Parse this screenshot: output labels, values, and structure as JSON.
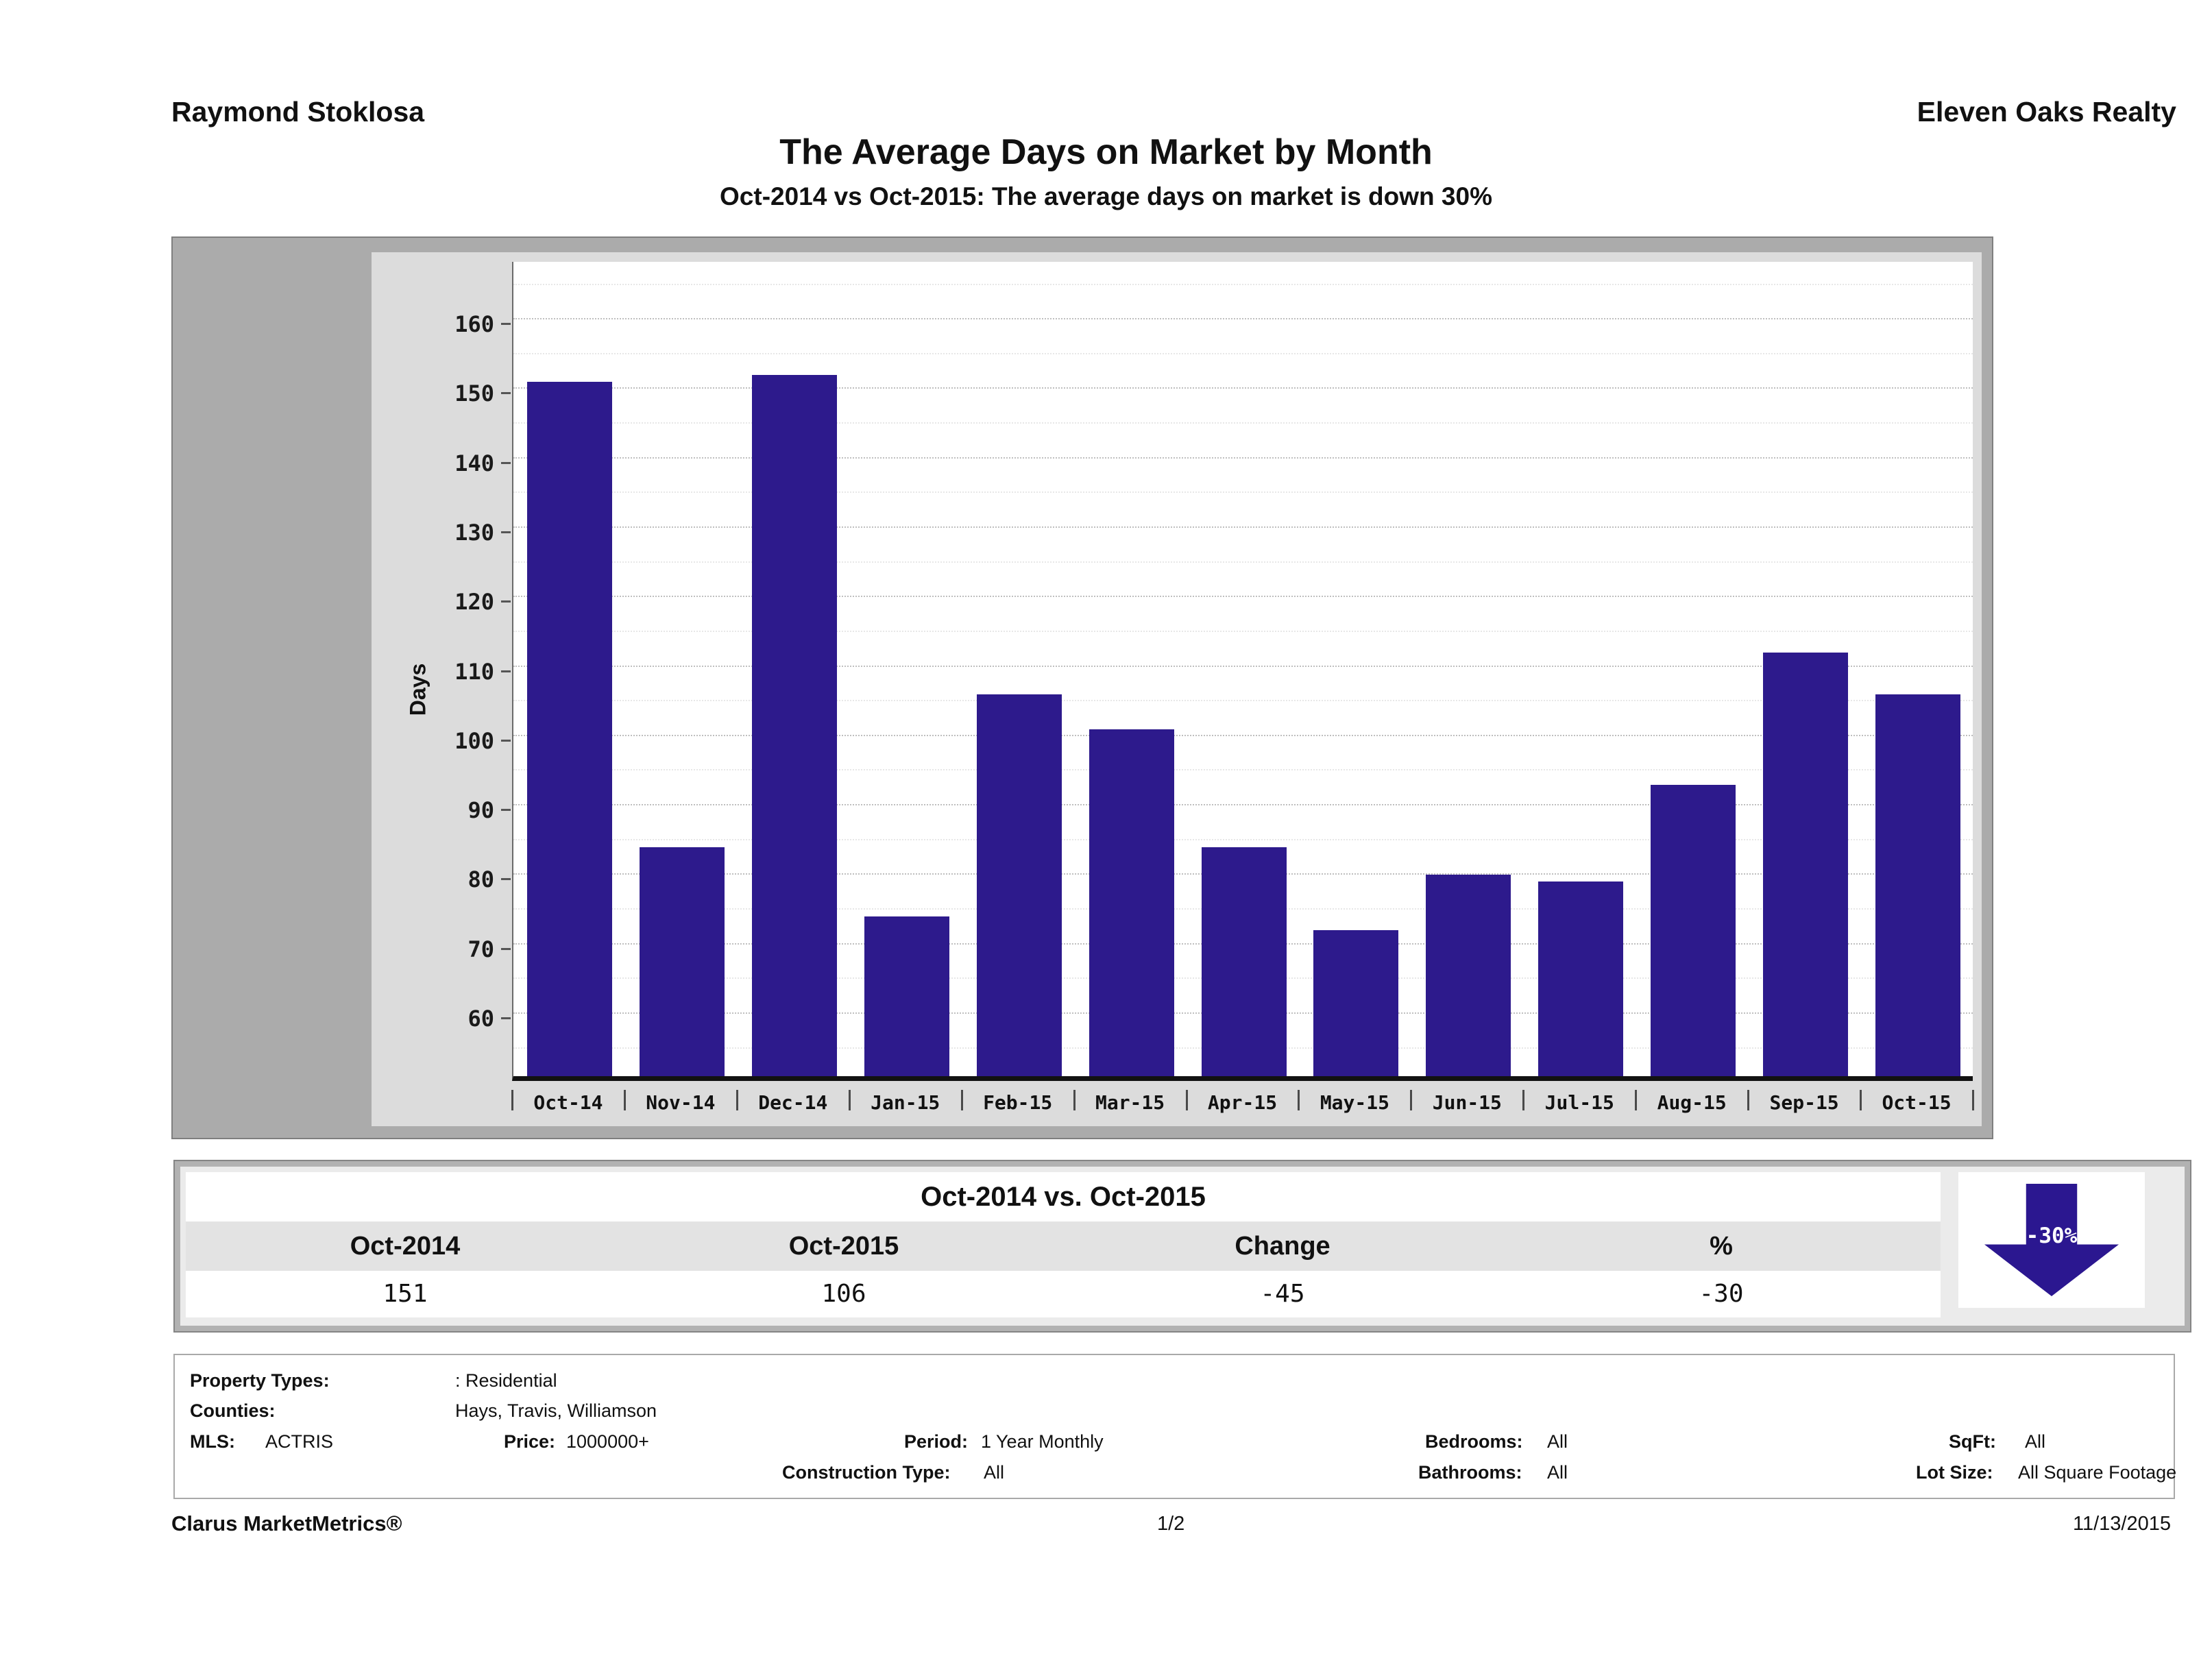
{
  "header": {
    "left": "Raymond Stoklosa",
    "right": "Eleven Oaks Realty"
  },
  "title": "The Average Days on Market by Month",
  "subtitle": "Oct-2014 vs Oct-2015: The average days on market is down 30%",
  "chart_data": {
    "type": "bar",
    "title": "The Average Days on Market by Month",
    "categories": [
      "Oct-14",
      "Nov-14",
      "Dec-14",
      "Jan-15",
      "Feb-15",
      "Mar-15",
      "Apr-15",
      "May-15",
      "Jun-15",
      "Jul-15",
      "Aug-15",
      "Sep-15",
      "Oct-15"
    ],
    "values": [
      151,
      84,
      152,
      74,
      106,
      101,
      84,
      72,
      80,
      79,
      93,
      112,
      106
    ],
    "xlabel": "",
    "ylabel": "Days",
    "yticks": [
      60,
      70,
      80,
      90,
      100,
      110,
      120,
      130,
      140,
      150,
      160
    ],
    "ylim": [
      51,
      169
    ],
    "grid": "horizontal dotted, major every 10 with faint minor every 5",
    "legend": "none",
    "bar_color": "#2d1a8c"
  },
  "comparison": {
    "title": "Oct-2014 vs. Oct-2015",
    "columns": [
      "Oct-2014",
      "Oct-2015",
      "Change",
      "%"
    ],
    "values": [
      "151",
      "106",
      "-45",
      "-30"
    ],
    "arrow_label": "-30%",
    "arrow_direction": "down"
  },
  "criteria": {
    "property_types_label": "Property Types:",
    "property_types": ": Residential",
    "counties_label": "Counties:",
    "counties": "Hays, Travis, Williamson",
    "mls_label": "MLS:",
    "mls": "ACTRIS",
    "price_label": "Price:",
    "price": "1000000+",
    "period_label": "Period:",
    "period": "1 Year Monthly",
    "bedrooms_label": "Bedrooms:",
    "bedrooms": "All",
    "sqft_label": "SqFt:",
    "sqft": "All",
    "construction_label": "Construction Type:",
    "construction": "All",
    "bathrooms_label": "Bathrooms:",
    "bathrooms": "All",
    "lot_size_label": "Lot Size:",
    "lot_size": "All Square Footage"
  },
  "footer": {
    "brand": "Clarus MarketMetrics®",
    "page": "1/2",
    "date": "11/13/2015"
  },
  "colors": {
    "bar": "#2d1a8c",
    "arrow": "#2b1790",
    "chart_outer_bg": "#ababab",
    "chart_panel_bg": "#dcdcdc",
    "table_outer_bg": "#b2b2b2",
    "table_inner_bg": "#ebebeb",
    "header_row_bg": "#e3e3e3"
  }
}
